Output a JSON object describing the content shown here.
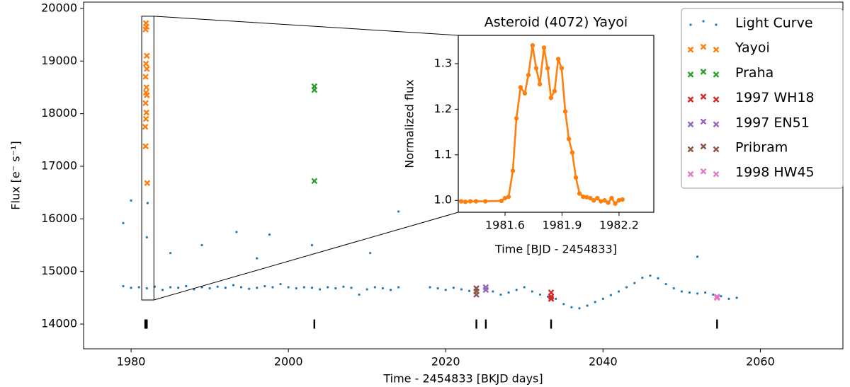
{
  "chart_data": [
    {
      "type": "scatter",
      "xlabel": "Time - 2454833 [BKJD days]",
      "ylabel": "Flux [e⁻ s⁻¹]",
      "xlim": [
        1973.96,
        2070.5
      ],
      "ylim": [
        13530,
        20120
      ],
      "xticks": [
        1980,
        2000,
        2020,
        2040,
        2060
      ],
      "yticks": [
        14000,
        15000,
        16000,
        17000,
        18000,
        19000,
        20000
      ],
      "legend": "upper right",
      "zoom_box": {
        "xlim": [
          1981.35,
          1982.9
        ],
        "ylim": [
          14458,
          19852
        ]
      },
      "event_ticks": {
        "color": "#000000",
        "x": [
          1981.8,
          1981.9,
          1982.0,
          2003.3,
          2023.9,
          2025.1,
          2033.4,
          2054.5
        ],
        "values": [
          14000,
          14000,
          14000,
          14000,
          14000,
          14000,
          14000,
          14000
        ]
      },
      "series": [
        {
          "name": "Light Curve",
          "color": "#1f77b4",
          "marker": "dot",
          "x": [
            1979,
            1980,
            1981,
            1982,
            1983,
            1984,
            1985,
            1986,
            1987,
            1988,
            1989,
            1990,
            1991,
            1992,
            1993,
            1994,
            1995,
            1996,
            1997,
            1998,
            1999,
            2000,
            2001,
            2002,
            2003,
            2004,
            2005,
            2006,
            2007,
            2008,
            2009,
            2010,
            2011,
            2012,
            2013,
            2014,
            2018,
            2019,
            2020,
            2021,
            2022,
            2023,
            2024,
            2025,
            2026,
            2027,
            2028,
            2029,
            2030,
            2031,
            2032,
            2033,
            2034,
            2035,
            2036,
            2037,
            2038,
            2039,
            2040,
            2041,
            2042,
            2043,
            2044,
            2045,
            2046,
            2047,
            2048,
            2049,
            2050,
            2051,
            2052,
            2053,
            2054,
            2055,
            2056,
            2057,
            1979.0,
            1980.0,
            1982.0,
            1982.1,
            1985,
            1989,
            1993.4,
            1996,
            1997.6,
            2003,
            2010.4,
            2014,
            2052
          ],
          "values": [
            14720,
            14690,
            14700,
            14680,
            14710,
            14650,
            14700,
            14690,
            14720,
            14660,
            14700,
            14680,
            14710,
            14690,
            14740,
            14700,
            14670,
            14690,
            14720,
            14700,
            14760,
            14700,
            14680,
            14700,
            14690,
            14660,
            14700,
            14680,
            14710,
            14690,
            14560,
            14660,
            14700,
            14680,
            14650,
            14700,
            14700,
            14680,
            14650,
            14690,
            14660,
            14630,
            14650,
            14700,
            14620,
            14560,
            14600,
            14650,
            14700,
            14620,
            14560,
            14520,
            14480,
            14380,
            14320,
            14300,
            14350,
            14420,
            14480,
            14550,
            14620,
            14700,
            14780,
            14880,
            14920,
            14870,
            14760,
            14680,
            14620,
            14600,
            14580,
            14600,
            14560,
            14530,
            14480,
            14500,
            15920,
            16350,
            15650,
            16300,
            15350,
            15500,
            15750,
            15250,
            15700,
            15500,
            15350,
            16140,
            15280
          ]
        },
        {
          "name": "Yayoi",
          "color": "#ff7f0e",
          "marker": "x",
          "x": [
            1981.9,
            1981.95,
            1981.85,
            1982.0,
            1981.9,
            1982.0,
            1981.85,
            1981.95,
            1981.9,
            1982.0,
            1981.85,
            1981.95,
            1981.9,
            1981.8,
            1981.85,
            1982.05
          ],
          "values": [
            19720,
            19650,
            19600,
            19100,
            18950,
            18850,
            18700,
            18500,
            18400,
            18350,
            18200,
            18020,
            17900,
            17750,
            17380,
            16680
          ]
        },
        {
          "name": "Praha",
          "color": "#2ca02c",
          "marker": "x",
          "x": [
            2003.3,
            2003.3,
            2003.3
          ],
          "values": [
            18520,
            18450,
            16720
          ]
        },
        {
          "name": "1997 WH18",
          "color": "#d62728",
          "marker": "x",
          "x": [
            2033.4,
            2033.4,
            2033.4
          ],
          "values": [
            14600,
            14520,
            14480
          ]
        },
        {
          "name": "1997 EN51",
          "color": "#9467bd",
          "marker": "x",
          "x": [
            2025.1,
            2025.1
          ],
          "values": [
            14700,
            14650
          ]
        },
        {
          "name": "Pribram",
          "color": "#8c564b",
          "marker": "x",
          "x": [
            2023.9,
            2023.9,
            2023.9
          ],
          "values": [
            14680,
            14620,
            14560
          ]
        },
        {
          "name": "1998 HW45",
          "color": "#e377c2",
          "marker": "x",
          "x": [
            2054.5,
            2054.5
          ],
          "values": [
            14520,
            14500
          ]
        }
      ]
    },
    {
      "type": "line",
      "title": "Asteroid (4072) Yayoi",
      "xlabel": "Time [BJD - 2454833]",
      "ylabel": "Normalized flux",
      "xlim": [
        1981.354,
        1982.383
      ],
      "ylim": [
        0.974,
        1.362
      ],
      "xticks": [
        1981.6,
        1981.9,
        1982.2
      ],
      "yticks": [
        {
          "value": 1,
          "label": "1.0"
        },
        1.1,
        1.2,
        1.3
      ],
      "series": [
        {
          "color": "#ff7f0e",
          "x": [
            1981.369,
            1981.391,
            1981.417,
            1981.447,
            1981.496,
            1981.581,
            1981.6,
            1981.619,
            1981.641,
            1981.66,
            1981.682,
            1981.704,
            1981.723,
            1981.745,
            1981.764,
            1981.783,
            1981.805,
            1981.824,
            1981.842,
            1981.861,
            1981.88,
            1981.898,
            1981.917,
            1981.936,
            1981.954,
            1981.973,
            1981.992,
            1982.011,
            1982.03,
            1982.049,
            1982.067,
            1982.086,
            1982.105,
            1982.124,
            1982.143,
            1982.161,
            1982.18,
            1982.199,
            1982.218
          ],
          "values": [
            0.998,
            0.997,
            0.998,
            0.998,
            0.998,
            0.999,
            1.005,
            1.008,
            1.065,
            1.18,
            1.248,
            1.235,
            1.275,
            1.34,
            1.29,
            1.255,
            1.335,
            1.29,
            1.225,
            1.24,
            1.31,
            1.29,
            1.195,
            1.135,
            1.105,
            1.05,
            1.015,
            1.008,
            1.007,
            1.005,
            1.0,
            1.005,
            0.998,
            1.0,
            0.995,
            1.005,
            0.993,
            1.0,
            1.002
          ]
        }
      ]
    }
  ]
}
